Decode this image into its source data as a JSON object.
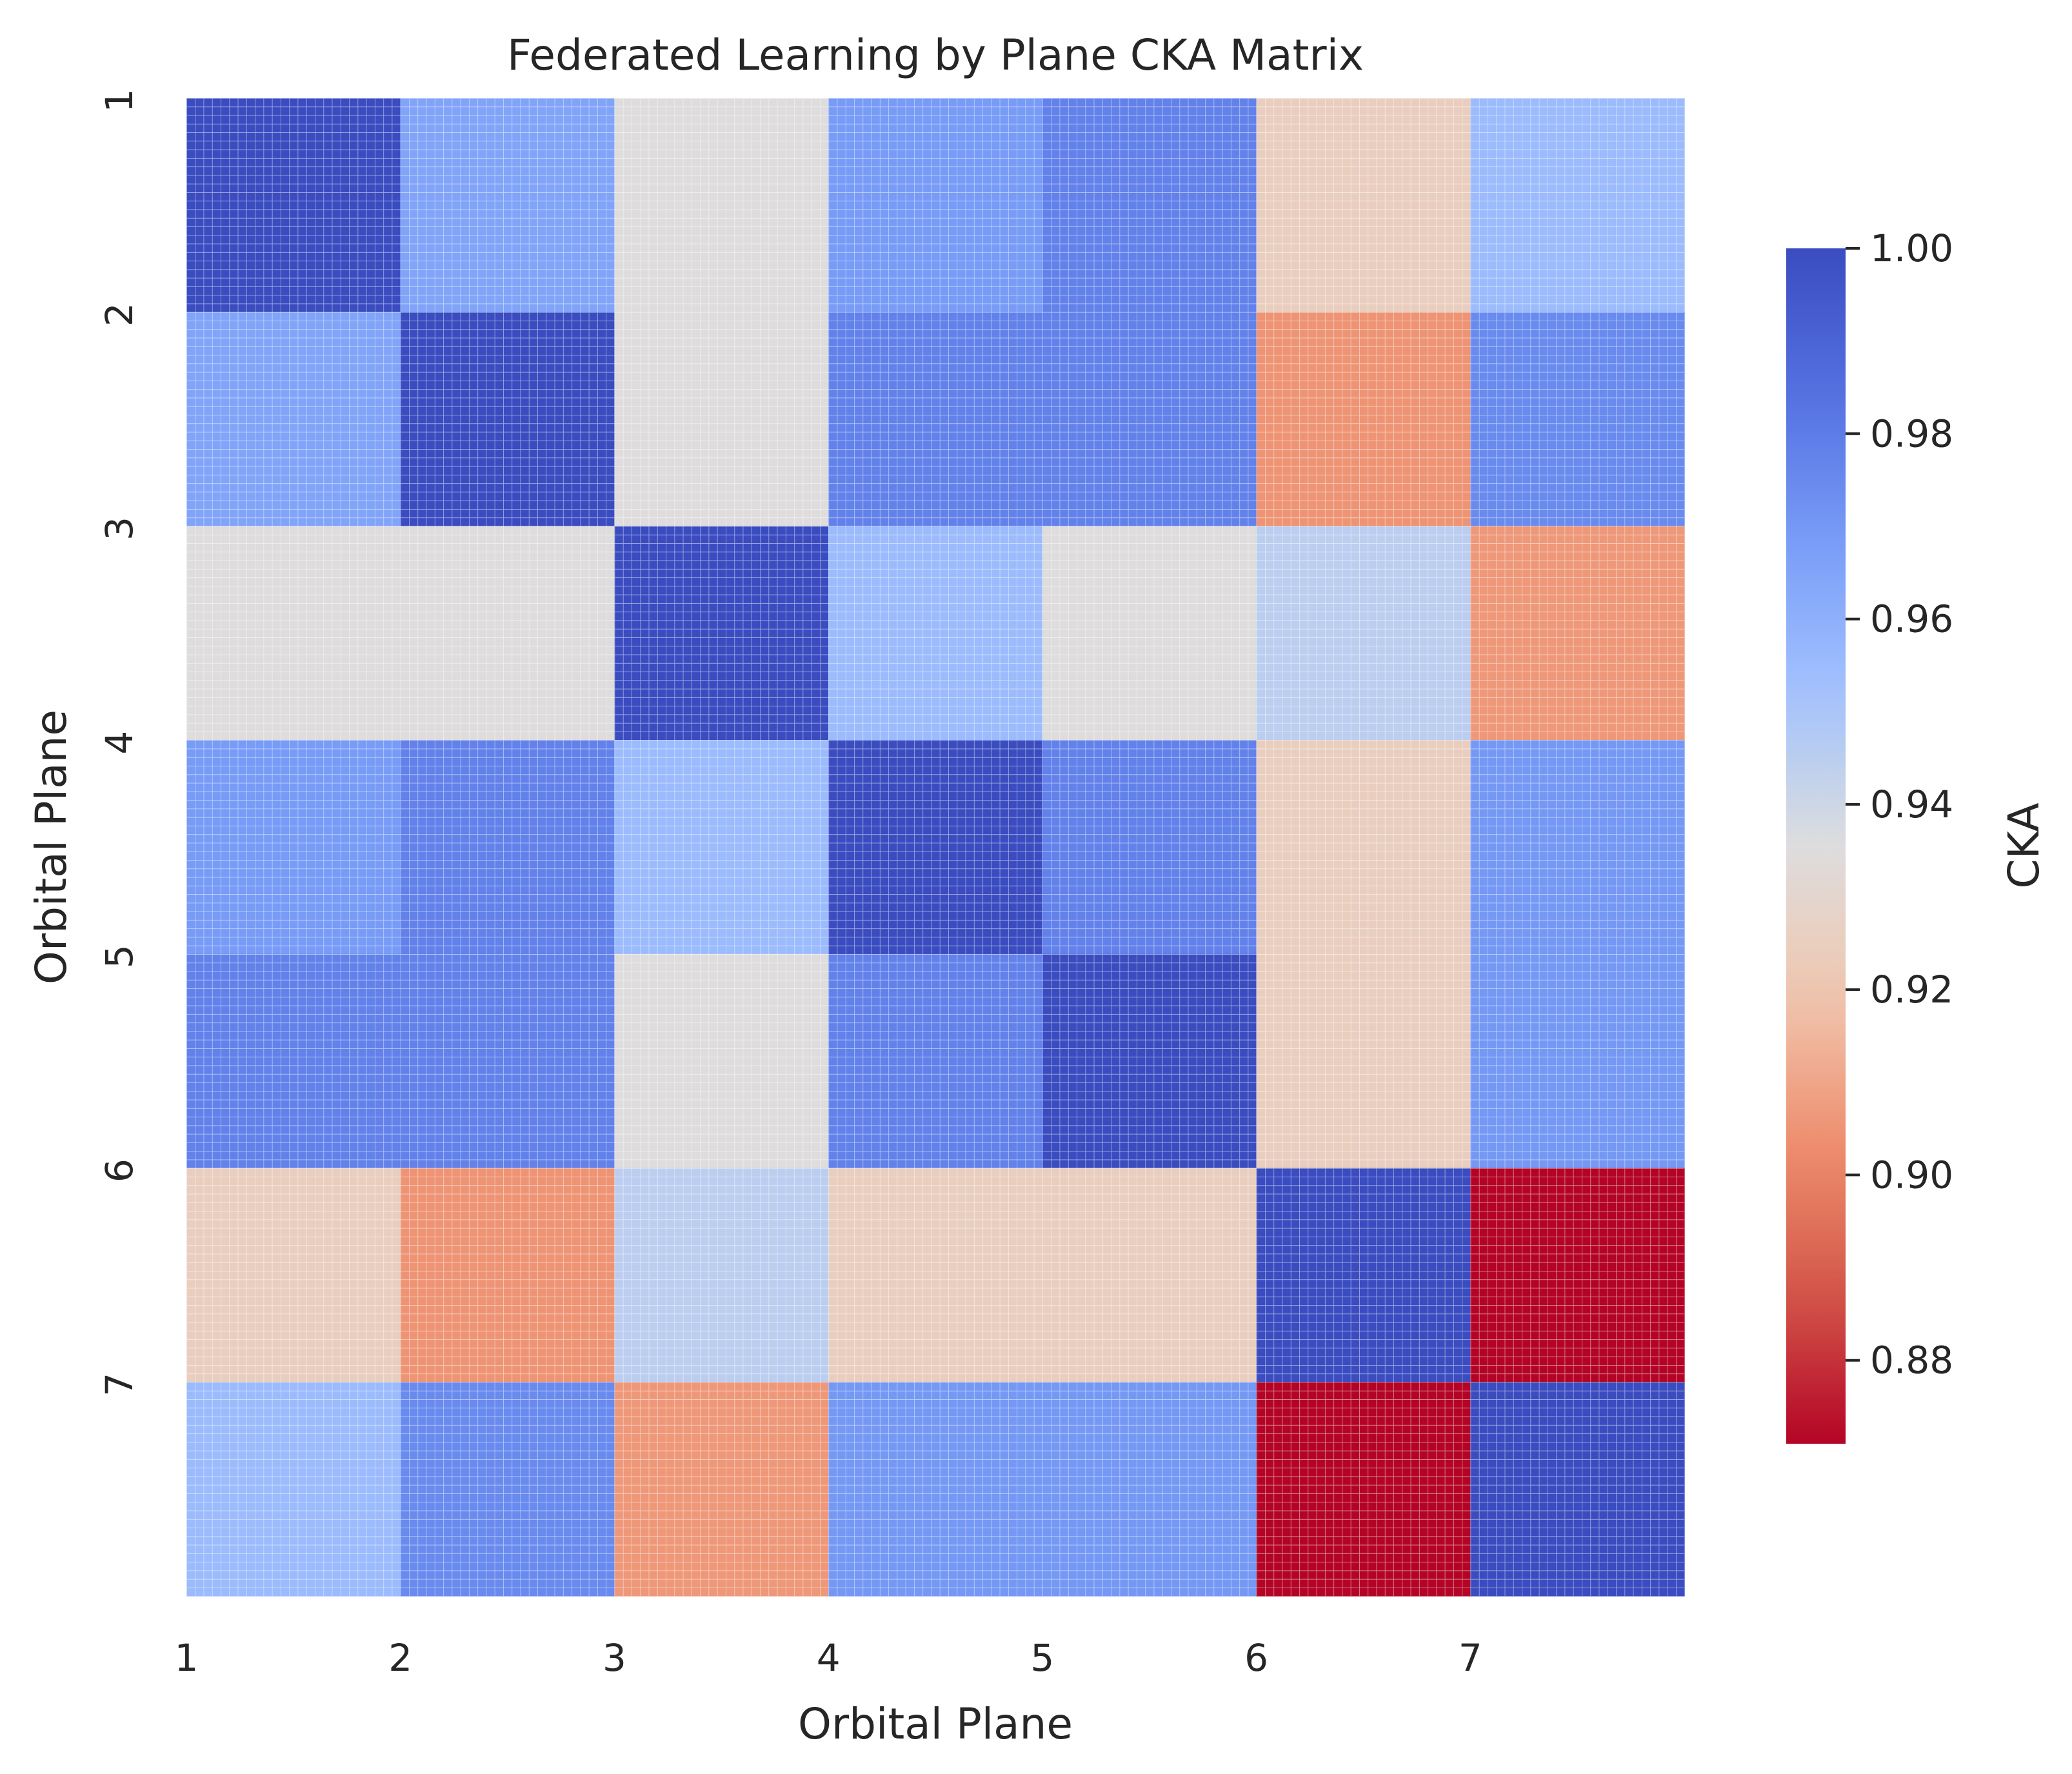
{
  "chart_data": {
    "type": "heatmap",
    "title": "Federated Learning by Plane CKA Matrix",
    "xlabel": "Orbital Plane",
    "ylabel": "Orbital Plane",
    "x_tick_labels": [
      "1",
      "2",
      "3",
      "4",
      "5",
      "6",
      "7"
    ],
    "y_tick_labels": [
      "1",
      "2",
      "3",
      "4",
      "5",
      "6",
      "7"
    ],
    "matrix": [
      [
        1.0,
        0.965,
        0.935,
        0.969,
        0.978,
        0.925,
        0.955
      ],
      [
        0.965,
        1.0,
        0.935,
        0.978,
        0.978,
        0.905,
        0.975
      ],
      [
        0.935,
        0.935,
        1.0,
        0.955,
        0.935,
        0.945,
        0.906
      ],
      [
        0.969,
        0.978,
        0.955,
        1.0,
        0.978,
        0.925,
        0.97
      ],
      [
        0.978,
        0.978,
        0.935,
        0.978,
        1.0,
        0.925,
        0.97
      ],
      [
        0.925,
        0.905,
        0.945,
        0.925,
        0.925,
        1.0,
        0.871
      ],
      [
        0.955,
        0.975,
        0.906,
        0.97,
        0.97,
        0.871,
        1.0
      ]
    ],
    "colormap": "coolwarm_r",
    "vmin": 0.871,
    "vmax": 1.0,
    "colorbar": {
      "label": "CKA",
      "ticks": [
        0.88,
        0.9,
        0.92,
        0.94,
        0.96,
        0.98,
        1.0
      ],
      "tick_labels": [
        "0.88",
        "0.90",
        "0.92",
        "0.94",
        "0.96",
        "0.98",
        "1.00"
      ]
    },
    "grid": true,
    "grid_color": "#ffffff"
  }
}
